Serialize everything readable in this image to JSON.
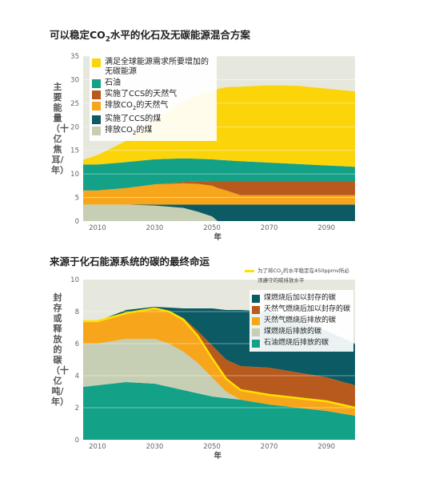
{
  "chart_data": [
    {
      "type": "area",
      "title": "可以稳定CO2水平的化石及无碳能源混合方案",
      "ylabel": "主要能量（十亿焦耳/年）",
      "xlabel": "年",
      "xlim": [
        2005,
        2100
      ],
      "ylim": [
        0,
        35
      ],
      "xticks": [
        2010,
        2030,
        2050,
        2070,
        2090
      ],
      "yticks": [
        0,
        5,
        10,
        15,
        20,
        25,
        30,
        35
      ],
      "grid": "horizontal",
      "stacked": true,
      "x": [
        2005,
        2010,
        2020,
        2030,
        2040,
        2045,
        2050,
        2052,
        2055,
        2060,
        2070,
        2080,
        2090,
        2100
      ],
      "series": [
        {
          "name": "排放CO2的煤",
          "color": "#c6cfb3",
          "values": [
            3.5,
            3.5,
            3.5,
            3.3,
            2.8,
            2.0,
            1.0,
            0.0,
            0.0,
            0.0,
            0.0,
            0.0,
            0.0,
            0.0
          ]
        },
        {
          "name": "实施了CCS的煤",
          "color": "#0b5a64",
          "values": [
            0,
            0,
            0,
            0.2,
            0.7,
            1.5,
            2.5,
            3.5,
            3.5,
            3.5,
            3.5,
            3.5,
            3.5,
            3.5
          ]
        },
        {
          "name": "排放CO2的天然气",
          "color": "#f7a51b",
          "values": [
            3.0,
            3.0,
            3.5,
            4.3,
            4.5,
            4.4,
            4.0,
            3.5,
            3.0,
            2.0,
            2.0,
            2.0,
            2.0,
            2.0
          ]
        },
        {
          "name": "实施了CCS的天然气",
          "color": "#b85a1e",
          "values": [
            0,
            0,
            0,
            0,
            0.3,
            0.5,
            1.0,
            1.5,
            2.0,
            3.0,
            3.0,
            3.0,
            3.0,
            3.0
          ]
        },
        {
          "name": "石油",
          "color": "#13a187",
          "values": [
            5.5,
            5.5,
            5.5,
            5.3,
            5.0,
            4.8,
            4.6,
            4.5,
            4.4,
            4.2,
            3.9,
            3.6,
            3.3,
            3.0
          ]
        },
        {
          "name": "满足全球能源需求所要增加的无碳能源",
          "color": "#fbd40a",
          "values": [
            1.0,
            2.0,
            4.5,
            8.5,
            12.0,
            13.5,
            14.5,
            15.0,
            15.5,
            15.8,
            16.4,
            16.6,
            16.3,
            16.0
          ]
        }
      ]
    },
    {
      "type": "area",
      "title": "来源于化石能源系统的碳的最终命运",
      "ylabel": "封存或释放的碳（十亿吨/年）",
      "xlabel": "年",
      "xlim": [
        2005,
        2100
      ],
      "ylim": [
        0,
        10
      ],
      "xticks": [
        2010,
        2030,
        2050,
        2070,
        2090
      ],
      "yticks": [
        0,
        2,
        4,
        6,
        8,
        10
      ],
      "grid": "horizontal",
      "stacked": true,
      "x": [
        2005,
        2010,
        2020,
        2030,
        2035,
        2040,
        2045,
        2050,
        2055,
        2060,
        2070,
        2080,
        2090,
        2100
      ],
      "series": [
        {
          "name": "石油燃烧后排放的碳",
          "color": "#13a187",
          "values": [
            3.3,
            3.4,
            3.6,
            3.5,
            3.3,
            3.1,
            2.9,
            2.7,
            2.6,
            2.5,
            2.2,
            2.0,
            1.8,
            1.5
          ]
        },
        {
          "name": "煤燃烧后排放的碳",
          "color": "#c6cfb3",
          "values": [
            2.7,
            2.6,
            2.7,
            2.8,
            2.7,
            2.4,
            1.9,
            1.2,
            0.4,
            0.0,
            0.0,
            0.0,
            0.0,
            0.0
          ]
        },
        {
          "name": "天然气燃烧后排放的碳",
          "color": "#f7a51b",
          "values": [
            1.4,
            1.4,
            1.6,
            1.9,
            2.0,
            2.0,
            1.6,
            1.2,
            0.8,
            0.6,
            0.6,
            0.6,
            0.6,
            0.5
          ]
        },
        {
          "name": "天然气燃烧后加以封存的碳",
          "color": "#b85a1e",
          "values": [
            0,
            0,
            0,
            0,
            0.05,
            0.1,
            0.4,
            0.8,
            1.2,
            1.5,
            1.7,
            1.6,
            1.5,
            1.4
          ]
        },
        {
          "name": "煤燃烧后加以封存的碳",
          "color": "#0b5a64",
          "values": [
            0,
            0,
            0.2,
            0.1,
            0.2,
            0.6,
            1.4,
            2.3,
            3.1,
            3.5,
            3.5,
            3.3,
            2.9,
            2.6
          ]
        }
      ],
      "stabilization_line": {
        "label": "为了将CO2的水平稳定在450ppmv所必须遵守的碳排放水平",
        "color": "#ffe000",
        "values": [
          7.4,
          7.4,
          7.9,
          8.2,
          8.0,
          7.5,
          6.5,
          5.1,
          3.8,
          3.1,
          2.8,
          2.6,
          2.4,
          2.0
        ]
      }
    }
  ]
}
